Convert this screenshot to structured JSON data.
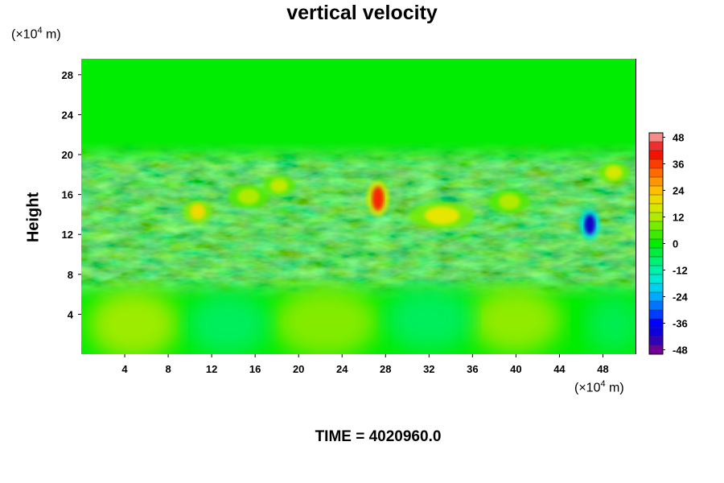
{
  "chart_data": {
    "type": "heatmap",
    "title": "vertical velocity",
    "ylabel": "Height",
    "xlabel": "",
    "x_unit": {
      "pre": "(×10",
      "exp": "4",
      "post": " m)"
    },
    "y_unit": {
      "pre": "(×10",
      "exp": "4",
      "post": " m)"
    },
    "x_ticks": [
      4,
      8,
      12,
      16,
      20,
      24,
      28,
      32,
      36,
      40,
      44,
      48
    ],
    "y_ticks": [
      4,
      8,
      12,
      16,
      20,
      24,
      28
    ],
    "xlim": [
      0,
      51
    ],
    "ylim": [
      0,
      29.6
    ],
    "colorbar": {
      "ticks": [
        48,
        36,
        24,
        12,
        0,
        -12,
        -24,
        -36,
        -48
      ],
      "range": [
        -50,
        50
      ],
      "levels": 25
    },
    "features": [
      {
        "x": 4.8,
        "y": 3.0,
        "value": 12,
        "rx": 4.2,
        "ry": 3.6
      },
      {
        "x": 22.5,
        "y": 3.2,
        "value": 10,
        "rx": 4.8,
        "ry": 3.6
      },
      {
        "x": 40.0,
        "y": 3.4,
        "value": 11,
        "rx": 4.2,
        "ry": 3.4
      },
      {
        "x": 13.5,
        "y": 3.0,
        "value": -7,
        "rx": 3.8,
        "ry": 3.2
      },
      {
        "x": 32.0,
        "y": 3.5,
        "value": -7,
        "rx": 4.0,
        "ry": 3.2
      },
      {
        "x": 49.0,
        "y": 3.0,
        "value": -6,
        "rx": 2.6,
        "ry": 3.0
      },
      {
        "x": 27.3,
        "y": 15.6,
        "value": 38,
        "rx": 0.55,
        "ry": 1.2
      },
      {
        "x": 46.8,
        "y": 13.0,
        "value": -42,
        "rx": 0.5,
        "ry": 1.0
      },
      {
        "x": 33.2,
        "y": 13.9,
        "value": 18,
        "rx": 1.6,
        "ry": 0.9
      },
      {
        "x": 10.7,
        "y": 14.3,
        "value": 20,
        "rx": 0.7,
        "ry": 0.8
      },
      {
        "x": 15.4,
        "y": 15.8,
        "value": 12,
        "rx": 1.0,
        "ry": 0.8
      },
      {
        "x": 18.2,
        "y": 16.9,
        "value": 14,
        "rx": 0.8,
        "ry": 0.7
      },
      {
        "x": 49.0,
        "y": 18.2,
        "value": 16,
        "rx": 0.8,
        "ry": 0.7
      },
      {
        "x": 39.4,
        "y": 15.3,
        "value": 12,
        "rx": 1.0,
        "ry": 0.8
      }
    ],
    "time_label": "TIME = 4020960.0"
  }
}
